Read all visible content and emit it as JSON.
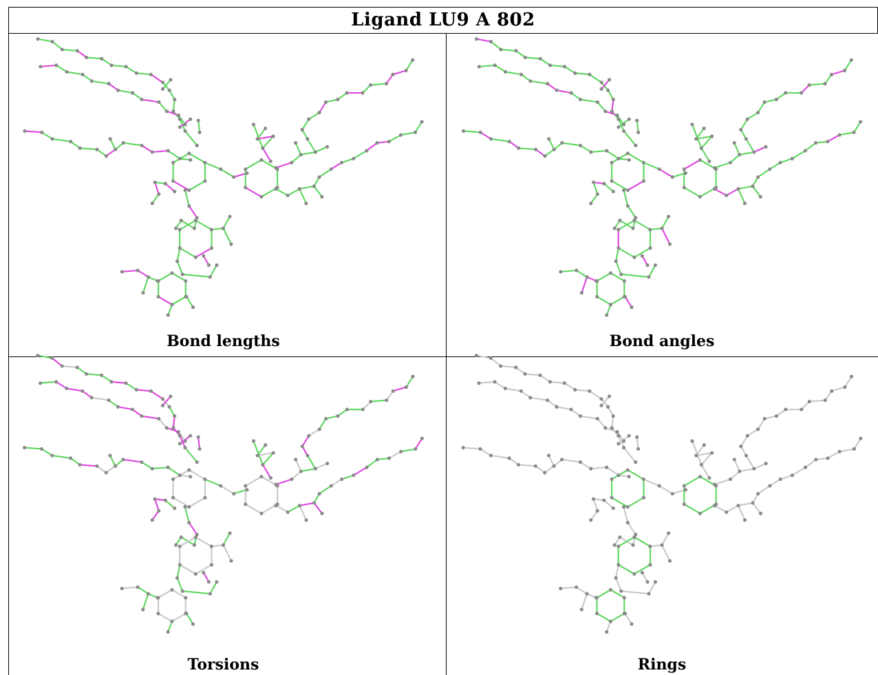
{
  "title": "Ligand LU9 A 802",
  "panels": [
    {
      "caption": "Bond lengths"
    },
    {
      "caption": "Bond angles"
    },
    {
      "caption": "Torsions"
    },
    {
      "caption": "Rings"
    }
  ],
  "colors": {
    "ok": "#5dd65d",
    "outlier": "#dd44dd",
    "neutral": "#c8c8c8",
    "atom": "#8a8a8a"
  }
}
